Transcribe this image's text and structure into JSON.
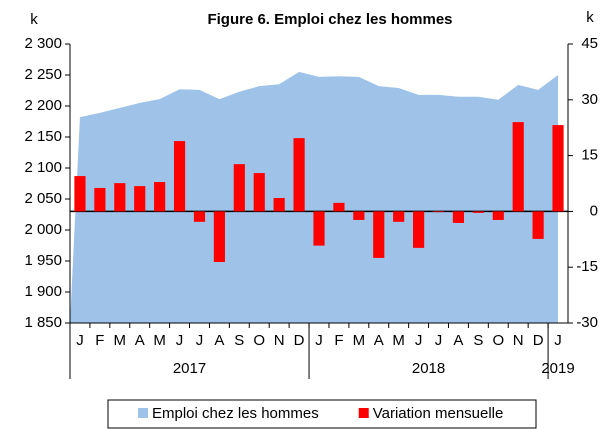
{
  "chart_data": {
    "type": "bar-area",
    "title": "Figure 6. Emploi chez les hommes",
    "y_unit": "k",
    "y2_unit": "k",
    "groups": [
      {
        "label": "2017",
        "categories": [
          "J",
          "F",
          "M",
          "A",
          "M",
          "J",
          "J",
          "A",
          "S",
          "O",
          "N",
          "D"
        ]
      },
      {
        "label": "2018",
        "categories": [
          "J",
          "F",
          "M",
          "A",
          "M",
          "J",
          "J",
          "A",
          "S",
          "O",
          "N",
          "D"
        ]
      },
      {
        "label": "2019",
        "categories": [
          "J"
        ]
      }
    ],
    "series": [
      {
        "name": "Emploi chez les hommes",
        "type": "area",
        "color": "#9fc3e8",
        "axis": "y",
        "values": [
          2182,
          2189,
          2197,
          2205,
          2211,
          2227,
          2226,
          2211,
          2223,
          2232,
          2235,
          2255,
          2247,
          2248,
          2247,
          2232,
          2229,
          2218,
          2218,
          2215,
          2215,
          2210,
          2234,
          2226,
          2250
        ]
      },
      {
        "name": "Variation mensuelle",
        "type": "bar",
        "color": "#ff0000",
        "axis": "y2",
        "values": [
          9.5,
          6.3,
          7.6,
          6.8,
          7.9,
          18.9,
          -2.8,
          -13.6,
          12.7,
          10.3,
          3.6,
          19.7,
          -9.2,
          2.3,
          -2.3,
          -12.5,
          -2.8,
          -9.8,
          -0.2,
          -3.1,
          -0.4,
          -2.3,
          24.0,
          -7.4,
          23.2
        ]
      }
    ],
    "ylim": [
      1850,
      2300
    ],
    "yticks": [
      {
        "value": 1850,
        "label": "1 850"
      },
      {
        "value": 1900,
        "label": "1 900"
      },
      {
        "value": 1950,
        "label": "1 950"
      },
      {
        "value": 2000,
        "label": "2 000"
      },
      {
        "value": 2050,
        "label": "2 050"
      },
      {
        "value": 2100,
        "label": "2 100"
      },
      {
        "value": 2150,
        "label": "2 150"
      },
      {
        "value": 2200,
        "label": "2 200"
      },
      {
        "value": 2250,
        "label": "2 250"
      },
      {
        "value": 2300,
        "label": "2 300"
      }
    ],
    "y2lim": [
      -30,
      45
    ],
    "y2ticks": [
      -30,
      -15,
      0,
      15,
      30,
      45
    ],
    "legend": "bottom"
  }
}
